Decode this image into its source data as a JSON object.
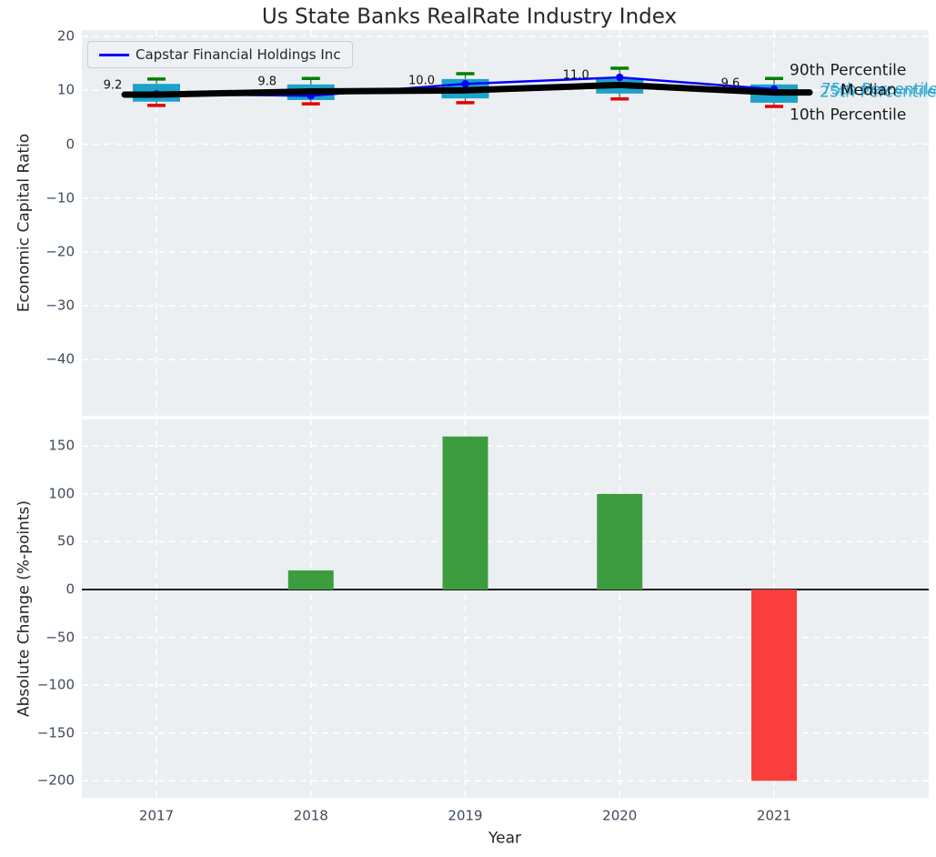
{
  "title": "Us State Banks RealRate Industry Index",
  "colors": {
    "figure_bg": "#ffffff",
    "plot_bg": "#eceff1",
    "grid": "#ffffff",
    "box_fill": "#1ba3ca",
    "whisker_center": "#555555",
    "p90_cap": "#008000",
    "p10_cap": "#e50000",
    "median_line": "#000000",
    "capstar_line": "#0000ff",
    "bar_positive": "#3d9c40",
    "bar_negative": "#f93e3e",
    "tick_label": "#3d4c5c",
    "annotation_cyan": "#2aa5d0",
    "text_dark": "#1a1a1a"
  },
  "chart_data": [
    {
      "type": "boxplot-line",
      "title": "Us State Banks RealRate Industry Index",
      "ylabel": "Economic Capital Ratio",
      "ylim": [
        -50.5,
        21.2
      ],
      "yticks": [
        20,
        10,
        0,
        -10,
        -20,
        -30,
        -40
      ],
      "categories": [
        "2017",
        "2018",
        "2019",
        "2020",
        "2021"
      ],
      "grid": true,
      "legend_position": "upper left",
      "legend": [
        {
          "label": "Capstar Financial Holdings Inc",
          "color": "#0000ff"
        }
      ],
      "series": [
        {
          "name": "Capstar Financial Holdings Inc",
          "values": [
            9.3,
            9.0,
            11.2,
            12.4,
            10.2
          ]
        },
        {
          "name": "Median",
          "values": [
            9.2,
            9.8,
            10.0,
            11.0,
            9.6
          ]
        }
      ],
      "boxplot": {
        "p90": [
          12.1,
          12.2,
          13.1,
          14.1,
          12.2
        ],
        "p75": [
          11.2,
          11.1,
          12.1,
          12.1,
          11.1
        ],
        "median": [
          9.2,
          9.8,
          10.0,
          11.0,
          9.6
        ],
        "p25": [
          7.9,
          8.2,
          8.5,
          9.4,
          7.7
        ],
        "p10": [
          7.2,
          7.5,
          7.7,
          8.4,
          7.0
        ]
      },
      "point_labels": [
        "9.2",
        "9.8",
        "10.0",
        "11.0",
        "9.6"
      ],
      "annotations": [
        {
          "text": "90th Percentile",
          "color": "#1a1a1a"
        },
        {
          "text": "75th Percentile",
          "color": "#2aa5d0"
        },
        {
          "text": "Median",
          "color": "#111111"
        },
        {
          "text": "25th Percentile",
          "color": "#2aa5d0"
        },
        {
          "text": "10th Percentile",
          "color": "#1a1a1a"
        }
      ]
    },
    {
      "type": "bar",
      "xlabel": "Year",
      "ylabel": "Absolute Change (%-points)",
      "ylim": [
        -218,
        178
      ],
      "yticks": [
        150,
        100,
        50,
        0,
        -50,
        -100,
        -150,
        -200
      ],
      "categories": [
        "2017",
        "2018",
        "2019",
        "2020",
        "2021"
      ],
      "values": [
        0,
        20,
        160,
        100,
        -200
      ],
      "positive_color": "#3d9c40",
      "negative_color": "#f93e3e",
      "zero_line": true,
      "grid": true
    }
  ]
}
